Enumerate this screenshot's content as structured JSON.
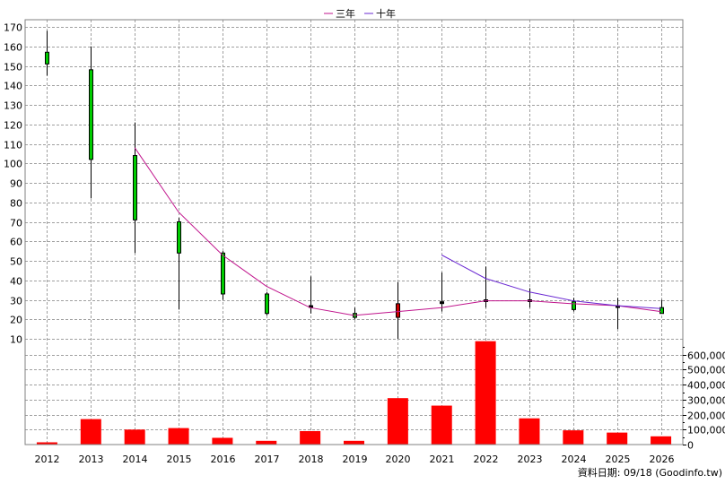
{
  "legend": {
    "items": [
      {
        "label": "三年",
        "color": "#c0148c"
      },
      {
        "label": "十年",
        "color": "#6a28d2"
      }
    ]
  },
  "footer": {
    "source_text": "資料日期: 09/18 (Goodinfo.tw)"
  },
  "chart_data": [
    {
      "type": "candlestick",
      "x": [
        "2012",
        "2013",
        "2014",
        "2015",
        "2016",
        "2017",
        "2018",
        "2019",
        "2020",
        "2021",
        "2022",
        "2023",
        "2024",
        "2025",
        "2026"
      ],
      "y_ticks": [
        10,
        20,
        30,
        40,
        50,
        60,
        70,
        80,
        90,
        100,
        110,
        120,
        130,
        140,
        150,
        160,
        170
      ],
      "ylim": [
        10,
        170
      ],
      "grid": true,
      "colors": {
        "up": "#00cc00",
        "down": "#cc0000",
        "wick": "#000000"
      },
      "candles": [
        {
          "x": "2012",
          "open": 151,
          "close": 157,
          "high": 168,
          "low": 145,
          "dir": "up"
        },
        {
          "x": "2013",
          "open": 102,
          "close": 148,
          "high": 160,
          "low": 82,
          "dir": "up"
        },
        {
          "x": "2014",
          "open": 71,
          "close": 104,
          "high": 121,
          "low": 54,
          "dir": "up"
        },
        {
          "x": "2015",
          "open": 54,
          "close": 70,
          "high": 72,
          "low": 25,
          "dir": "up"
        },
        {
          "x": "2016",
          "open": 33,
          "close": 54,
          "high": 55,
          "low": 30,
          "dir": "up"
        },
        {
          "x": "2017",
          "open": 23,
          "close": 33,
          "high": 34,
          "low": 22,
          "dir": "up"
        },
        {
          "x": "2018",
          "open": 27,
          "close": 27,
          "high": 42,
          "low": 23,
          "dir": "flat"
        },
        {
          "x": "2019",
          "open": 21,
          "close": 23,
          "high": 26,
          "low": 20,
          "dir": "up"
        },
        {
          "x": "2020",
          "open": 28,
          "close": 21,
          "high": 39,
          "low": 10,
          "dir": "down"
        },
        {
          "x": "2021",
          "open": 29,
          "close": 29,
          "high": 44,
          "low": 24,
          "dir": "flat"
        },
        {
          "x": "2022",
          "open": 30,
          "close": 30,
          "high": 47,
          "low": 26,
          "dir": "flat"
        },
        {
          "x": "2023",
          "open": 30,
          "close": 30,
          "high": 36,
          "low": 26,
          "dir": "flat"
        },
        {
          "x": "2024",
          "open": 25,
          "close": 29,
          "high": 31,
          "low": 24,
          "dir": "up"
        },
        {
          "x": "2025",
          "open": 27,
          "close": 27,
          "high": 31,
          "low": 15,
          "dir": "flat"
        },
        {
          "x": "2026",
          "open": 23,
          "close": 26,
          "high": 30,
          "low": 23,
          "dir": "up"
        }
      ],
      "series": [
        {
          "name": "三年",
          "color": "#c0148c",
          "points": [
            {
              "x": "2014",
              "y": 108
            },
            {
              "x": "2015",
              "y": 75
            },
            {
              "x": "2016",
              "y": 53
            },
            {
              "x": "2017",
              "y": 37
            },
            {
              "x": "2018",
              "y": 26
            },
            {
              "x": "2019",
              "y": 22
            },
            {
              "x": "2020",
              "y": 24
            },
            {
              "x": "2021",
              "y": 26
            },
            {
              "x": "2022",
              "y": 29.5
            },
            {
              "x": "2023",
              "y": 29.5
            },
            {
              "x": "2024",
              "y": 28
            },
            {
              "x": "2025",
              "y": 27
            },
            {
              "x": "2026",
              "y": 24
            }
          ]
        },
        {
          "name": "十年",
          "color": "#6a28d2",
          "points": [
            {
              "x": "2021",
              "y": 53
            },
            {
              "x": "2022",
              "y": 41
            },
            {
              "x": "2023",
              "y": 34
            },
            {
              "x": "2024",
              "y": 29.5
            },
            {
              "x": "2025",
              "y": 27
            },
            {
              "x": "2026",
              "y": 25.5
            }
          ]
        }
      ]
    },
    {
      "type": "bar",
      "categories": [
        "2012",
        "2013",
        "2014",
        "2015",
        "2016",
        "2017",
        "2018",
        "2019",
        "2020",
        "2021",
        "2022",
        "2023",
        "2024",
        "2025",
        "2026"
      ],
      "values": [
        15000,
        170000,
        100000,
        110000,
        45000,
        25000,
        90000,
        25000,
        310000,
        260000,
        690000,
        175000,
        95000,
        80000,
        55000
      ],
      "y_ticks": [
        0,
        100000,
        200000,
        300000,
        400000,
        500000,
        600000
      ],
      "y_tick_labels": [
        "0",
        "100,000",
        "200,000",
        "300,000",
        "400,000",
        "500,000",
        "600,000"
      ],
      "ylim": [
        0,
        700000
      ],
      "color": "#ff0000"
    }
  ]
}
